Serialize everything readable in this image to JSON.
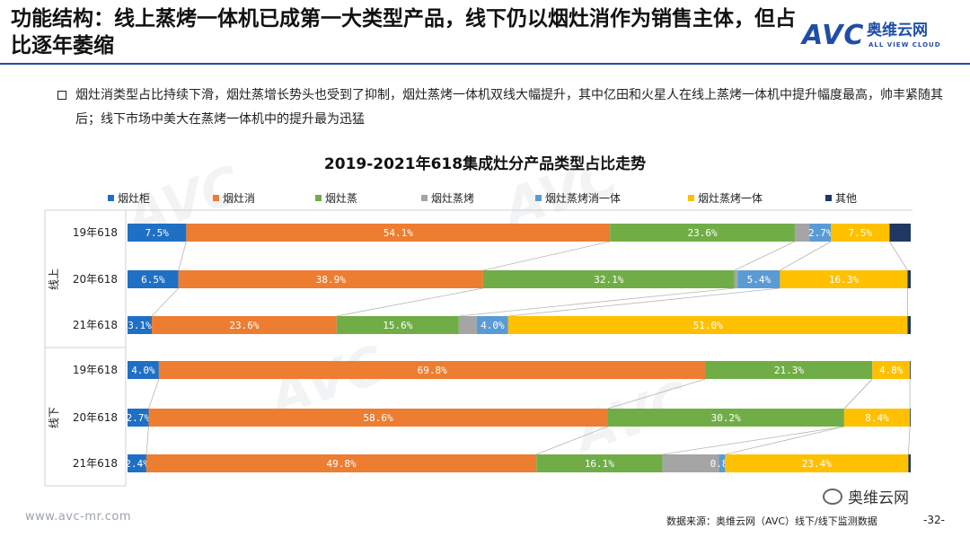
{
  "header": {
    "title": "功能结构：线上蒸烤一体机已成第一大类型产品，线下仍以烟灶消作为销售主体，但占比逐年萎缩",
    "logo_text": "AVC",
    "logo_cn": "奥维云网",
    "logo_en": "ALL VIEW CLOUD"
  },
  "bullet": {
    "text": "烟灶消类型占比持续下滑，烟灶蒸增长势头也受到了抑制，烟灶蒸烤一体机双线大幅提升，其中亿田和火星人在线上蒸烤一体机中提升幅度最高，帅丰紧随其后；线下市场中美大在蒸烤一体机中的提升最为迅猛"
  },
  "chart_data": {
    "type": "bar",
    "orientation": "horizontal",
    "stacked": "percent",
    "title": "2019-2021年618集成灶分产品类型占比走势",
    "legend_position": "top",
    "groups": [
      {
        "name": "线上",
        "categories": [
          "19年618",
          "20年618",
          "21年618"
        ]
      },
      {
        "name": "线下",
        "categories": [
          "19年618",
          "20年618",
          "21年618"
        ]
      }
    ],
    "categories": [
      "线上 19年618",
      "线上 20年618",
      "线上 21年618",
      "线下 19年618",
      "线下 20年618",
      "线下 21年618"
    ],
    "series": [
      {
        "name": "烟灶柜",
        "color": "#1f6fc5",
        "values": [
          7.5,
          6.5,
          3.1,
          4.0,
          2.7,
          2.4
        ],
        "labels": [
          "7.5%",
          "6.5%",
          "3.1%",
          "4.0%",
          "2.7%",
          "2.4%"
        ]
      },
      {
        "name": "烟灶消",
        "color": "#ed7d31",
        "values": [
          54.1,
          38.9,
          23.6,
          69.8,
          58.6,
          49.8
        ],
        "labels": [
          "54.1%",
          "38.9%",
          "23.6%",
          "69.8%",
          "58.6%",
          "49.8%"
        ]
      },
      {
        "name": "烟灶蒸",
        "color": "#70ad47",
        "values": [
          23.6,
          32.1,
          15.6,
          21.3,
          30.2,
          16.1
        ],
        "labels": [
          "23.6%",
          "32.1%",
          "15.6%",
          "21.3%",
          "30.2%",
          "16.1%"
        ]
      },
      {
        "name": "烟灶蒸烤",
        "color": "#a5a5a5",
        "values": [
          1.9,
          0.4,
          2.3,
          0.0,
          0.0,
          7.2
        ],
        "labels": [
          "",
          "",
          "",
          "",
          "",
          ""
        ]
      },
      {
        "name": "烟灶蒸烤消一体",
        "color": "#5b9bd5",
        "values": [
          2.7,
          5.4,
          4.0,
          0.0,
          0.0,
          0.8
        ],
        "labels": [
          "2.7%",
          "5.4%",
          "4.0%",
          "",
          "",
          "0.8%"
        ]
      },
      {
        "name": "烟灶蒸烤一体",
        "color": "#ffc000",
        "values": [
          7.5,
          16.3,
          51.0,
          4.8,
          8.4,
          23.4
        ],
        "labels": [
          "7.5%",
          "16.3%",
          "51.0%",
          "4.8%",
          "8.4%",
          "23.4%"
        ]
      },
      {
        "name": "其他",
        "color": "#1f3864",
        "values": [
          2.7,
          0.4,
          0.4,
          0.1,
          0.1,
          0.3
        ],
        "labels": [
          "",
          "",
          "",
          "",
          "",
          ""
        ]
      }
    ]
  },
  "footer": {
    "url": "www.avc-mr.com",
    "source": "数据来源：奥维云网（AVC）线下/线下监测数据",
    "page": "-32-",
    "wechat": "奥维云网"
  },
  "watermark": {
    "text": "AVC 奥维云网",
    "sub": "ALL VIEW CLOUD"
  }
}
